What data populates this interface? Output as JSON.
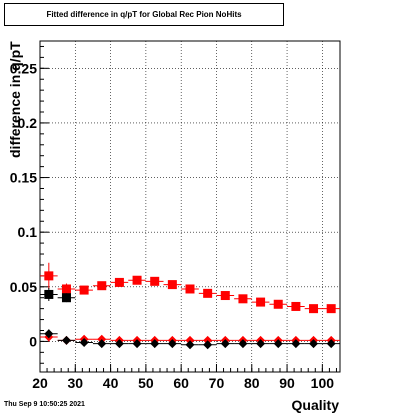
{
  "title": "Fitted difference in q/pT for Global Rec Pion NoHits",
  "timestamp": "Thu Sep  9 10:50:25 2021",
  "chart_data": {
    "type": "scatter",
    "title": "Fitted difference in q/pT for Global Rec Pion NoHits",
    "xlabel": "Quality",
    "ylabel": "difference in q/pT",
    "xlim": [
      20,
      105
    ],
    "ylim": [
      -0.028,
      0.275
    ],
    "x_ticks": [
      "20",
      "30",
      "40",
      "50",
      "60",
      "70",
      "80",
      "90",
      "100"
    ],
    "y_ticks": [
      "0",
      "0.05",
      "0.1",
      "0.15",
      "0.2",
      "0.25"
    ],
    "grid": true,
    "series": [
      {
        "marker": "square",
        "color": "#ff0000",
        "x": [
          22.5,
          27.5,
          32.5,
          37.5,
          42.5,
          47.5,
          52.5,
          57.5,
          62.5,
          67.5,
          72.5,
          77.5,
          82.5,
          87.5,
          92.5,
          97.5,
          102.5
        ],
        "y": [
          0.06,
          0.048,
          0.047,
          0.051,
          0.054,
          0.056,
          0.055,
          0.052,
          0.048,
          0.044,
          0.042,
          0.039,
          0.036,
          0.034,
          0.032,
          0.03,
          0.03
        ],
        "yerr": [
          0.012,
          0.005,
          0.003,
          0.002,
          0.002,
          0.002,
          0.002,
          0.002,
          0.002,
          0.002,
          0.002,
          0.002,
          0.002,
          0.002,
          0.002,
          0.002,
          0.002
        ]
      },
      {
        "marker": "square",
        "color": "#000000",
        "x": [
          22.5,
          27.5
        ],
        "y": [
          0.043,
          0.04
        ],
        "yerr": [
          0.006,
          0.004
        ]
      },
      {
        "marker": "diamond",
        "color": "#ff0000",
        "x": [
          22.5,
          27.5,
          32.5,
          37.5,
          42.5,
          47.5,
          52.5,
          57.5,
          62.5,
          67.5,
          72.5,
          77.5,
          82.5,
          87.5,
          92.5,
          97.5,
          102.5
        ],
        "y": [
          0.004,
          0.001,
          0.002,
          0.002,
          0.001,
          0.001,
          0.001,
          0.001,
          0.001,
          0.001,
          0.001,
          0.001,
          0.001,
          0.001,
          0.001,
          0.001,
          0.001
        ],
        "yerr": [
          0.004,
          0.002,
          0.001,
          0.001,
          0.001,
          0.001,
          0.001,
          0.001,
          0.001,
          0.001,
          0.001,
          0.001,
          0.001,
          0.001,
          0.001,
          0.001,
          0.001
        ]
      },
      {
        "marker": "diamond",
        "color": "#000000",
        "x": [
          22.5,
          27.5,
          32.5,
          37.5,
          42.5,
          47.5,
          52.5,
          57.5,
          62.5,
          67.5,
          72.5,
          77.5,
          82.5,
          87.5,
          92.5,
          97.5,
          102.5
        ],
        "y": [
          0.007,
          0.001,
          -0.001,
          -0.002,
          -0.002,
          -0.002,
          -0.002,
          -0.002,
          -0.003,
          -0.003,
          -0.002,
          -0.002,
          -0.002,
          -0.002,
          -0.002,
          -0.002,
          -0.002
        ],
        "yerr": [
          0.004,
          0.002,
          0.001,
          0.001,
          0.001,
          0.001,
          0.001,
          0.001,
          0.001,
          0.001,
          0.001,
          0.001,
          0.001,
          0.001,
          0.001,
          0.001,
          0.001
        ]
      }
    ]
  }
}
